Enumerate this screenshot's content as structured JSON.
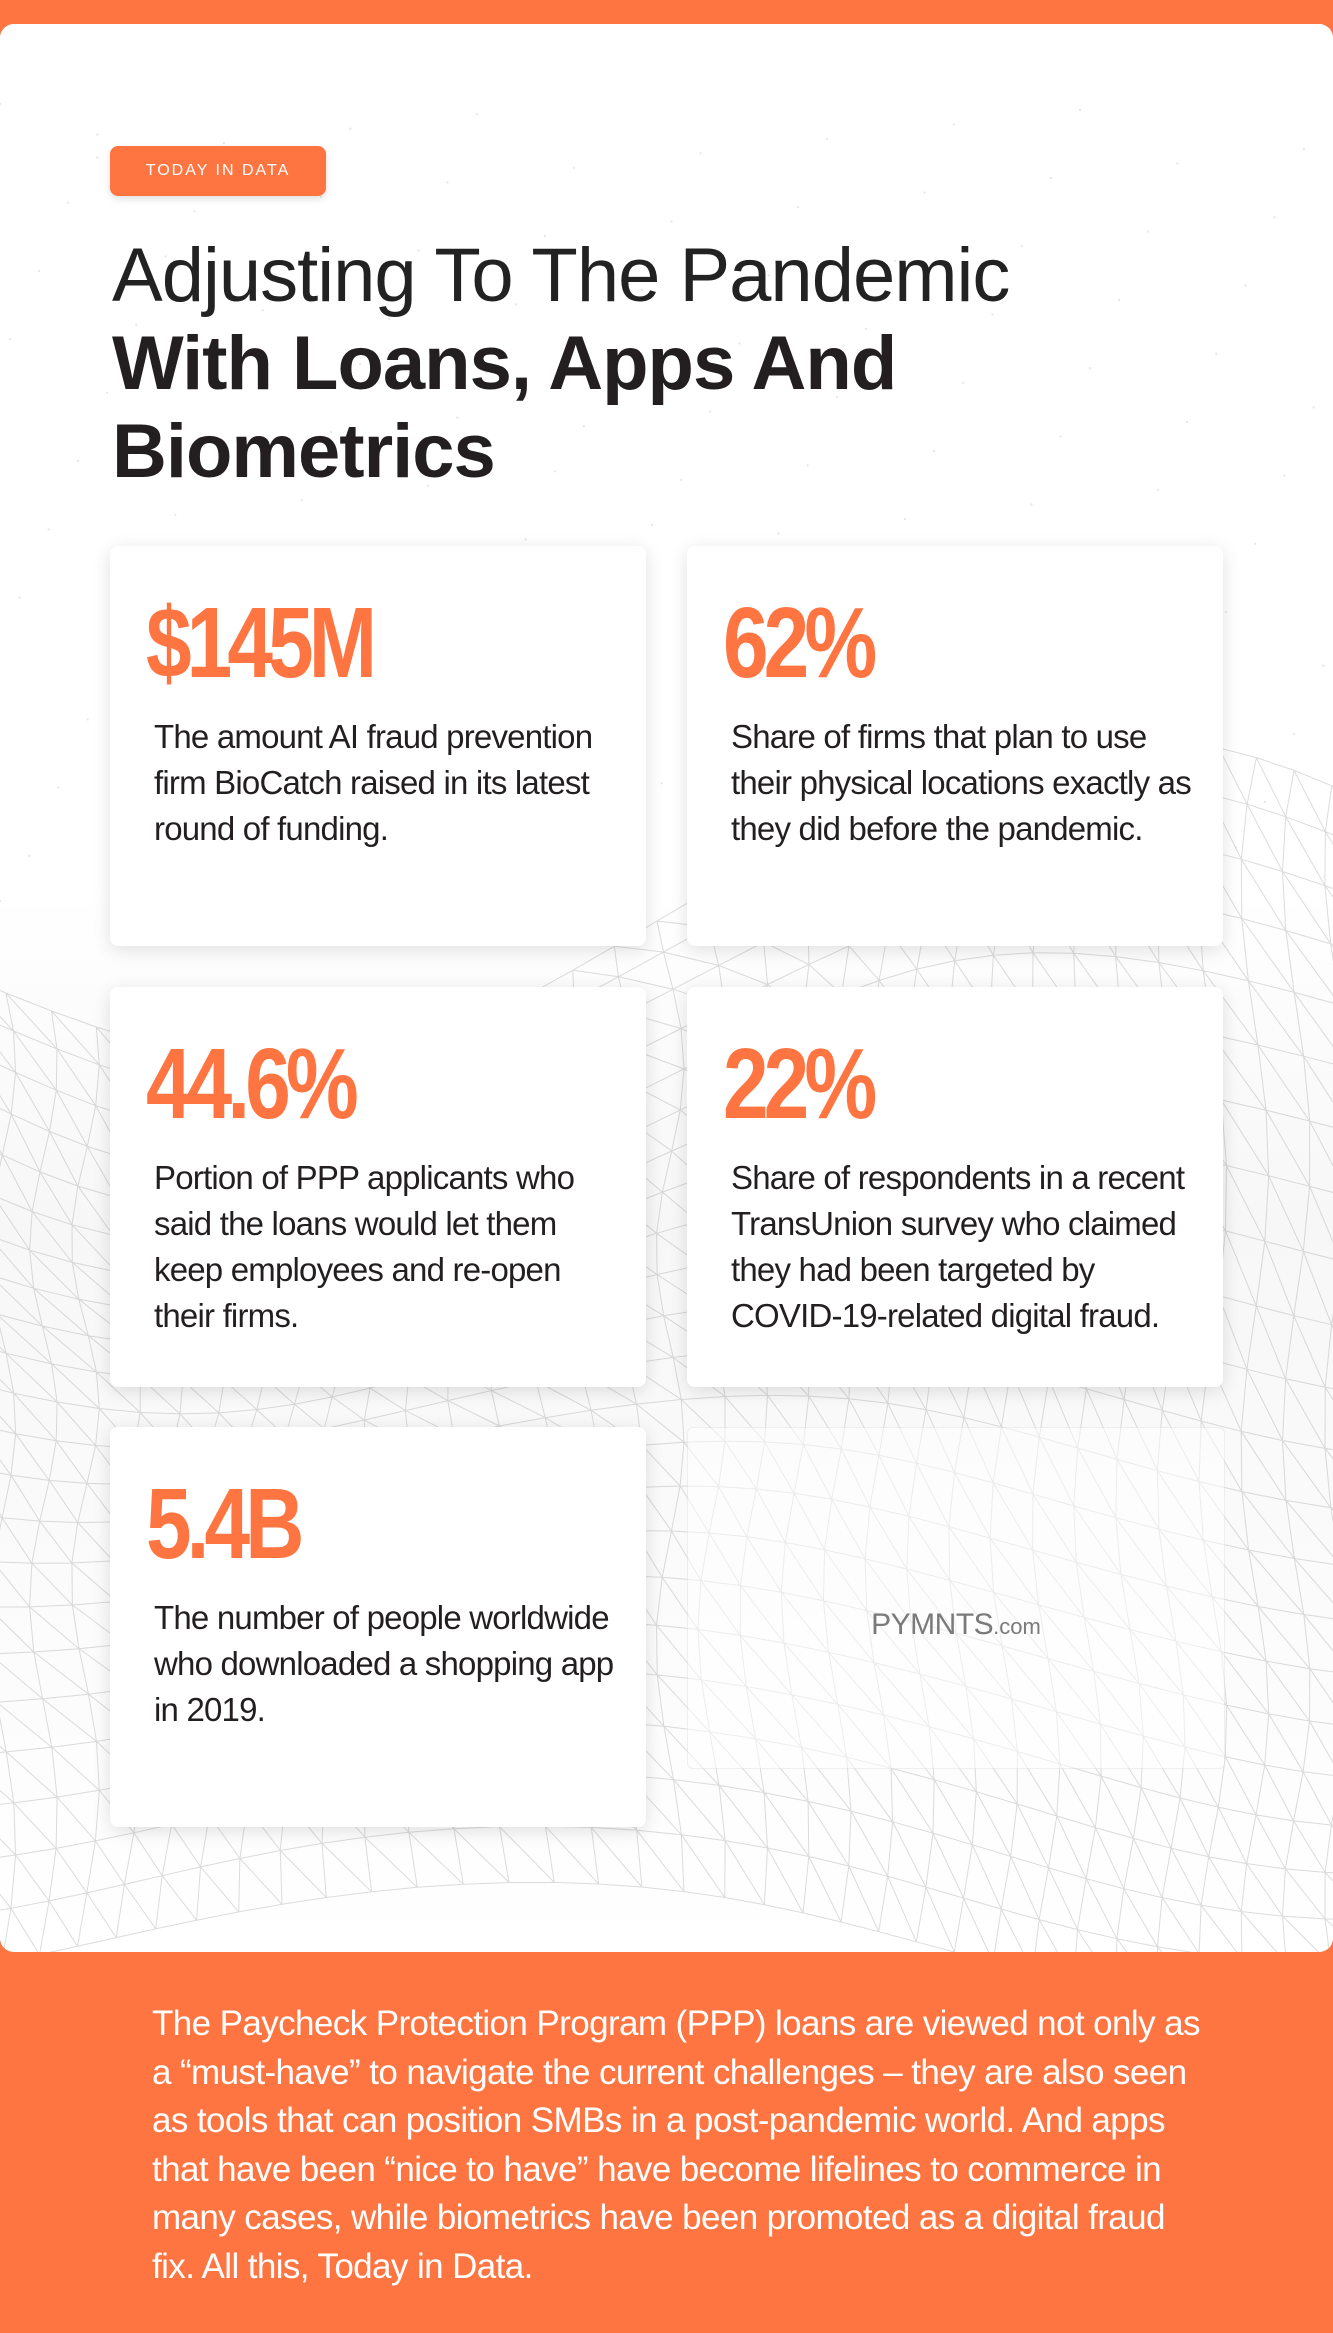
{
  "tag_label": "TODAY IN DATA",
  "title": {
    "light": "Adjusting To The Pandemic",
    "bold": "With Loans, Apps And Biometrics"
  },
  "stats": [
    {
      "value": "$145M",
      "description": "The amount AI fraud prevention firm BioCatch raised in its latest round of funding."
    },
    {
      "value": "62%",
      "description": "Share of firms that plan to use their physical locations exactly as they did before the pandemic."
    },
    {
      "value": "44.6%",
      "description": "Portion of PPP applicants who said the loans would let them keep employees and re-open their firms."
    },
    {
      "value": "22%",
      "description": "Share of respondents in a recent TransUnion survey who claimed they had been targeted by COVID-19-related digital fraud."
    },
    {
      "value": "5.4B",
      "description": "The number of people worldwide who downloaded a shopping app in 2019."
    }
  ],
  "logo": {
    "main": "PYMNTS",
    "suffix": ".com"
  },
  "footer_text": "The Paycheck Protection Program (PPP) loans are viewed not only as a “must-have” to navigate the current challenges – they are also seen as tools that can position SMBs in a post-pandemic world. And apps that have been “nice to have” have become lifelines to commerce in many cases, while biometrics have been promoted as a digital fraud fix. All this, Today in Data.",
  "colors": {
    "accent": "#ff7542",
    "text": "#231f20",
    "background": "#ffffff"
  }
}
